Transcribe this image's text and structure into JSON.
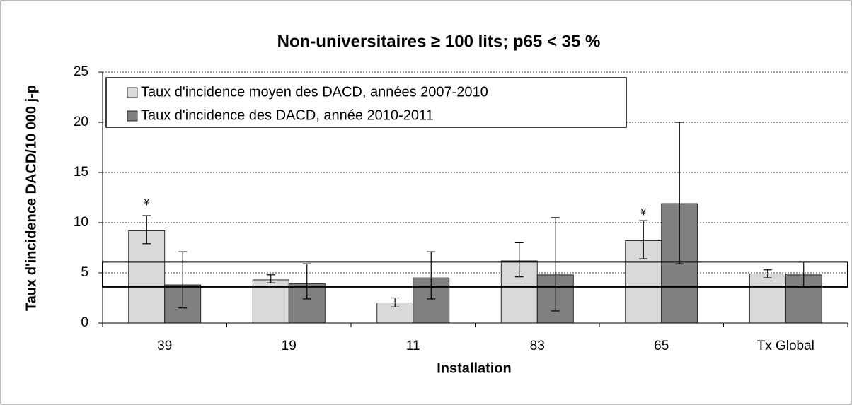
{
  "chart_data": {
    "type": "bar",
    "title": "Non-universitaires ≥ 100 lits; p65 < 35 %",
    "x_label": "Installation",
    "y_label": "Taux d'incidence DACD/10 000 j-p",
    "categories": [
      "39",
      "19",
      "11",
      "83",
      "65",
      "Tx Global"
    ],
    "series": [
      {
        "name": "Taux d'incidence moyen des DACD, années 2007-2010",
        "color": "#d9d9d9",
        "values": [
          9.2,
          4.3,
          2.0,
          6.2,
          8.2,
          4.9
        ],
        "error_low": [
          7.9,
          4.0,
          1.6,
          4.6,
          6.4,
          4.5
        ],
        "error_high": [
          10.7,
          4.8,
          2.5,
          8.0,
          10.2,
          5.3
        ]
      },
      {
        "name": "Taux d'incidence des DACD, année 2010-2011",
        "color": "#808080",
        "values": [
          3.8,
          3.9,
          4.5,
          4.8,
          11.9,
          4.8
        ],
        "error_low": [
          1.5,
          2.4,
          2.4,
          1.2,
          5.9,
          3.6
        ],
        "error_high": [
          7.1,
          5.9,
          7.1,
          10.5,
          20.0,
          6.1
        ]
      }
    ],
    "annotations": [
      {
        "category": "39",
        "text": "¥",
        "value": 12.0
      },
      {
        "category": "65",
        "text": "¥",
        "value": 11.0
      }
    ],
    "reference_band": [
      3.6,
      6.1
    ],
    "ylim": [
      0,
      25
    ],
    "yticks": [
      0,
      5,
      10,
      15,
      20,
      25
    ],
    "grid": true
  }
}
